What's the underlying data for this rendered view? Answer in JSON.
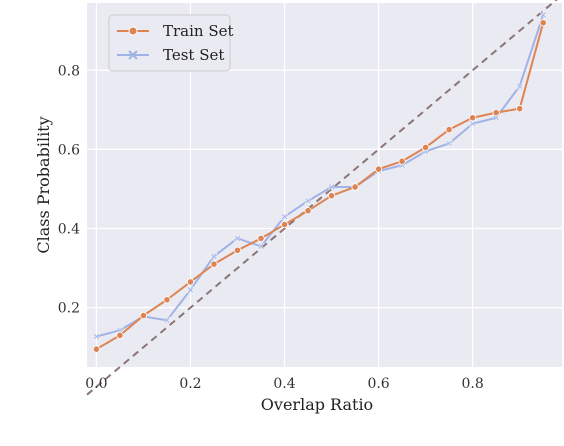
{
  "chart_data": {
    "type": "line",
    "title": "",
    "xlabel": "Overlap Ratio",
    "ylabel": "Class Probability",
    "xlim": [
      -0.02,
      0.99
    ],
    "ylim": [
      0.05,
      0.97
    ],
    "xticks": [
      "0.0",
      "0.2",
      "0.4",
      "0.6",
      "0.8"
    ],
    "yticks": [
      "0.2",
      "0.4",
      "0.6",
      "0.8"
    ],
    "grid": true,
    "legend": "top-left",
    "reference_line": {
      "style": "dashed",
      "color": "#8b7575",
      "from": [
        -0.02,
        -0.02
      ],
      "to": [
        0.99,
        0.99
      ]
    },
    "series": [
      {
        "name": "Train Set",
        "color": "#dd8452",
        "marker": "circle",
        "x": [
          0.0,
          0.05,
          0.1,
          0.15,
          0.2,
          0.25,
          0.3,
          0.35,
          0.4,
          0.45,
          0.5,
          0.55,
          0.6,
          0.65,
          0.7,
          0.75,
          0.8,
          0.85,
          0.9,
          0.95
        ],
        "y": [
          0.095,
          0.13,
          0.18,
          0.22,
          0.265,
          0.31,
          0.345,
          0.375,
          0.41,
          0.445,
          0.483,
          0.505,
          0.55,
          0.57,
          0.605,
          0.65,
          0.68,
          0.693,
          0.703,
          0.92
        ]
      },
      {
        "name": "Test Set",
        "color": "#a1b2e6",
        "marker": "x",
        "x": [
          0.0,
          0.05,
          0.1,
          0.15,
          0.2,
          0.25,
          0.3,
          0.35,
          0.4,
          0.45,
          0.5,
          0.55,
          0.6,
          0.65,
          0.7,
          0.75,
          0.8,
          0.85,
          0.9,
          0.95
        ],
        "y": [
          0.127,
          0.143,
          0.178,
          0.168,
          0.245,
          0.33,
          0.375,
          0.355,
          0.43,
          0.47,
          0.505,
          0.505,
          0.545,
          0.56,
          0.595,
          0.615,
          0.665,
          0.68,
          0.76,
          0.94
        ]
      }
    ]
  }
}
